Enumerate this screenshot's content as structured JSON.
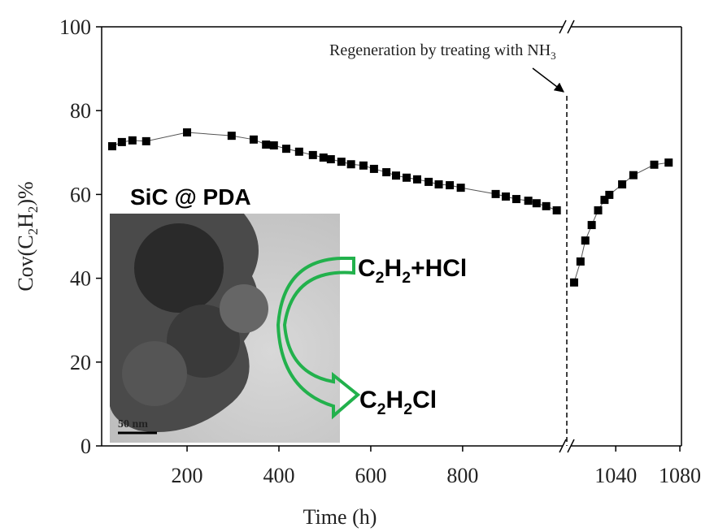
{
  "chart_data": {
    "type": "scatter",
    "xlabel": "Time (h)",
    "ylabel": [
      {
        "text": "Cov(C"
      },
      {
        "text": "2",
        "sub": true
      },
      {
        "text": "H"
      },
      {
        "text": "2",
        "sub": true
      },
      {
        "text": ")%"
      }
    ],
    "annotation": [
      {
        "text": "Regeneration by treating with NH"
      },
      {
        "text": "3",
        "sub": true
      }
    ],
    "x_break": true,
    "xlim": [
      [
        14,
        1018
      ],
      [
        1012,
        1081
      ]
    ],
    "xticks": [
      [
        200,
        400,
        600,
        800
      ],
      [
        1040,
        1080
      ]
    ],
    "ylim": [
      0,
      100
    ],
    "yticks": [
      0,
      20,
      40,
      60,
      80,
      100
    ],
    "color": "#000000",
    "series": [
      {
        "x": [
          37,
          58,
          81,
          111,
          200,
          297,
          345,
          372,
          389,
          416,
          444,
          474,
          497,
          513,
          536,
          557,
          584,
          607,
          634,
          655,
          678,
          701,
          726,
          748,
          772,
          796,
          872,
          894,
          917,
          943,
          961,
          982,
          1005
        ],
        "values": [
          71.5,
          72.5,
          72.9,
          72.7,
          74.8,
          74.0,
          73.1,
          71.9,
          71.7,
          70.9,
          70.2,
          69.4,
          68.8,
          68.4,
          67.8,
          67.2,
          66.9,
          66.1,
          65.3,
          64.5,
          64.0,
          63.6,
          63.0,
          62.4,
          62.2,
          61.6,
          60.1,
          59.5,
          58.9,
          58.5,
          57.9,
          57.2,
          56.2
        ]
      },
      {
        "x": [
          1014,
          1018,
          1021,
          1025,
          1029,
          1033,
          1036,
          1044,
          1051,
          1064,
          1073
        ],
        "values": [
          39.0,
          44.0,
          49.0,
          52.7,
          56.2,
          58.7,
          59.9,
          62.4,
          64.6,
          67.1,
          67.6
        ]
      }
    ],
    "inset": {
      "title": "SiC @ PDA",
      "scale_bar": "50 nm",
      "reactant": [
        {
          "text": "C"
        },
        {
          "text": "2",
          "sub": true
        },
        {
          "text": "H"
        },
        {
          "text": "2",
          "sub": true
        },
        {
          "text": "+HCl"
        }
      ],
      "product": [
        {
          "text": "C"
        },
        {
          "text": "2",
          "sub": true
        },
        {
          "text": "H"
        },
        {
          "text": "2",
          "sub": true
        },
        {
          "text": "Cl"
        }
      ]
    }
  }
}
